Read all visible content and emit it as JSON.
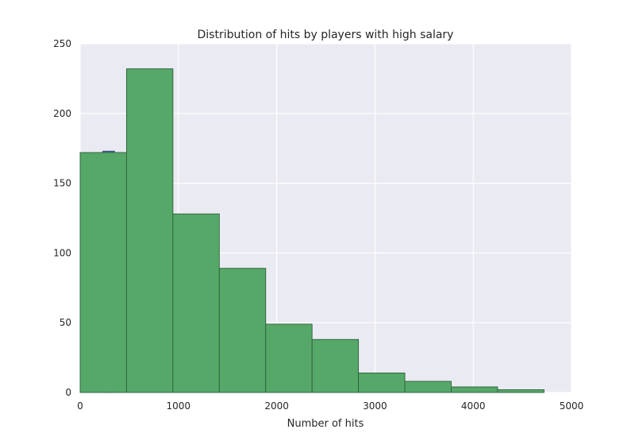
{
  "chart_data": {
    "type": "bar",
    "title": "Distribution of hits by players with high salary",
    "xlabel": "Number of hits",
    "ylabel": "",
    "xlim": [
      0,
      5000
    ],
    "ylim": [
      0,
      250
    ],
    "x_ticks": [
      0,
      1000,
      2000,
      3000,
      4000,
      5000
    ],
    "y_ticks": [
      0,
      50,
      100,
      150,
      200,
      250
    ],
    "grid": true,
    "colors": {
      "background": "#EAEAF2",
      "grid": "#FFFFFF",
      "bar_fill": "#55A868",
      "bar_edge": "#2F5F3A",
      "hidden_bar": "#4C72B0"
    },
    "bins": [
      {
        "x0": 0,
        "x1": 472,
        "value": 172
      },
      {
        "x0": 472,
        "x1": 944,
        "value": 232
      },
      {
        "x0": 944,
        "x1": 1416,
        "value": 128
      },
      {
        "x0": 1416,
        "x1": 1888,
        "value": 89
      },
      {
        "x0": 1888,
        "x1": 2360,
        "value": 49
      },
      {
        "x0": 2360,
        "x1": 2832,
        "value": 38
      },
      {
        "x0": 2832,
        "x1": 3304,
        "value": 14
      },
      {
        "x0": 3304,
        "x1": 3776,
        "value": 8
      },
      {
        "x0": 3776,
        "x1": 4248,
        "value": 4
      },
      {
        "x0": 4248,
        "x1": 4720,
        "value": 2
      }
    ],
    "hidden_series_peek": {
      "x0": 230,
      "x1": 350,
      "value": 173
    }
  }
}
